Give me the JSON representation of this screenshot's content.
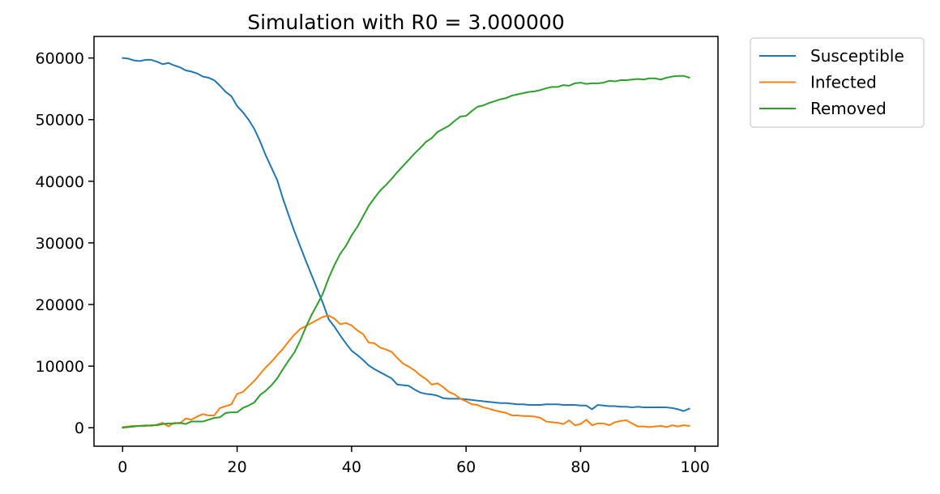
{
  "chart_data": {
    "type": "line",
    "title": "Simulation with R0 = 3.000000",
    "xlabel": "",
    "ylabel": "",
    "xlim": [
      -5,
      104
    ],
    "ylim": [
      -3000,
      63500
    ],
    "xticks": [
      0,
      20,
      40,
      60,
      80,
      100
    ],
    "yticks": [
      0,
      10000,
      20000,
      30000,
      40000,
      50000,
      60000
    ],
    "xtick_labels": [
      "0",
      "20",
      "40",
      "60",
      "80",
      "100"
    ],
    "ytick_labels": [
      "0",
      "10000",
      "20000",
      "30000",
      "40000",
      "50000",
      "60000"
    ],
    "grid": false,
    "legend_position": "outside-top-right",
    "x": [
      0,
      1,
      2,
      3,
      4,
      5,
      6,
      7,
      8,
      9,
      10,
      11,
      12,
      13,
      14,
      15,
      16,
      17,
      18,
      19,
      20,
      21,
      22,
      23,
      24,
      25,
      26,
      27,
      28,
      29,
      30,
      31,
      32,
      33,
      34,
      35,
      36,
      37,
      38,
      39,
      40,
      41,
      42,
      43,
      44,
      45,
      46,
      47,
      48,
      49,
      50,
      51,
      52,
      53,
      54,
      55,
      56,
      57,
      58,
      59,
      60,
      61,
      62,
      63,
      64,
      65,
      66,
      67,
      68,
      69,
      70,
      71,
      72,
      73,
      74,
      75,
      76,
      77,
      78,
      79,
      80,
      81,
      82,
      83,
      84,
      85,
      86,
      87,
      88,
      89,
      90,
      91,
      92,
      93,
      94,
      95,
      96,
      97,
      98,
      99
    ],
    "series": [
      {
        "name": "Susceptible",
        "color": "#1f77b4",
        "values": [
          60000,
          59900,
          59600,
          59500,
          59700,
          59700,
          59400,
          59000,
          59200,
          58800,
          58500,
          58000,
          57800,
          57500,
          57000,
          56800,
          56400,
          55500,
          54500,
          53800,
          52200,
          51200,
          50000,
          48500,
          46500,
          44200,
          42200,
          40200,
          37200,
          34500,
          31900,
          29500,
          27100,
          24800,
          22500,
          20200,
          17600,
          16400,
          15000,
          13700,
          12500,
          11800,
          11000,
          10100,
          9500,
          9000,
          8500,
          8000,
          7000,
          6900,
          6800,
          6200,
          5700,
          5500,
          5400,
          5200,
          4800,
          4700,
          4700,
          4700,
          4600,
          4500,
          4400,
          4300,
          4200,
          4100,
          4000,
          4000,
          3900,
          3800,
          3800,
          3700,
          3700,
          3700,
          3800,
          3800,
          3800,
          3700,
          3700,
          3700,
          3600,
          3600,
          3000,
          3700,
          3600,
          3500,
          3500,
          3400,
          3400,
          3300,
          3400,
          3300,
          3300,
          3300,
          3300,
          3300,
          3200,
          3000,
          2700,
          3100
        ]
      },
      {
        "name": "Infected",
        "color": "#ff7f0e",
        "values": [
          100,
          200,
          300,
          300,
          400,
          300,
          500,
          800,
          200,
          800,
          700,
          1500,
          1300,
          1800,
          2200,
          2000,
          2000,
          3200,
          3500,
          3800,
          5500,
          5800,
          6700,
          7600,
          8700,
          9800,
          10700,
          11800,
          12800,
          14000,
          15100,
          16000,
          16500,
          17000,
          17500,
          18000,
          18200,
          17700,
          16800,
          17000,
          16600,
          15800,
          15200,
          13800,
          13700,
          13000,
          12700,
          12300,
          11300,
          10400,
          9900,
          9300,
          8500,
          7900,
          7000,
          7200,
          6600,
          5800,
          5400,
          4700,
          4300,
          3800,
          3700,
          3300,
          3100,
          2800,
          2600,
          2400,
          2000,
          2000,
          1900,
          1900,
          1800,
          1600,
          1000,
          900,
          800,
          600,
          1200,
          400,
          600,
          1300,
          400,
          700,
          700,
          400,
          900,
          1100,
          1200,
          700,
          200,
          200,
          100,
          200,
          300,
          100,
          400,
          200,
          400,
          300
        ]
      },
      {
        "name": "Removed",
        "color": "#2ca02c",
        "values": [
          0,
          100,
          200,
          300,
          300,
          400,
          400,
          600,
          700,
          700,
          800,
          600,
          1000,
          1000,
          1000,
          1300,
          1600,
          1700,
          2400,
          2500,
          2500,
          3200,
          3600,
          4100,
          5300,
          6000,
          6900,
          8000,
          9500,
          10900,
          12200,
          14100,
          16300,
          18300,
          20000,
          21800,
          24300,
          26400,
          28200,
          29500,
          31200,
          32600,
          34300,
          36000,
          37300,
          38500,
          39400,
          40400,
          41500,
          42500,
          43500,
          44500,
          45400,
          46400,
          47000,
          48000,
          48500,
          49000,
          49800,
          50500,
          50600,
          51400,
          52100,
          52300,
          52700,
          53000,
          53300,
          53500,
          53900,
          54100,
          54300,
          54500,
          54600,
          54800,
          55100,
          55300,
          55300,
          55600,
          55500,
          55900,
          56000,
          55800,
          55900,
          55900,
          56000,
          56300,
          56200,
          56400,
          56400,
          56500,
          56600,
          56500,
          56700,
          56700,
          56500,
          56800,
          57000,
          57100,
          57100,
          56800
        ]
      }
    ]
  }
}
